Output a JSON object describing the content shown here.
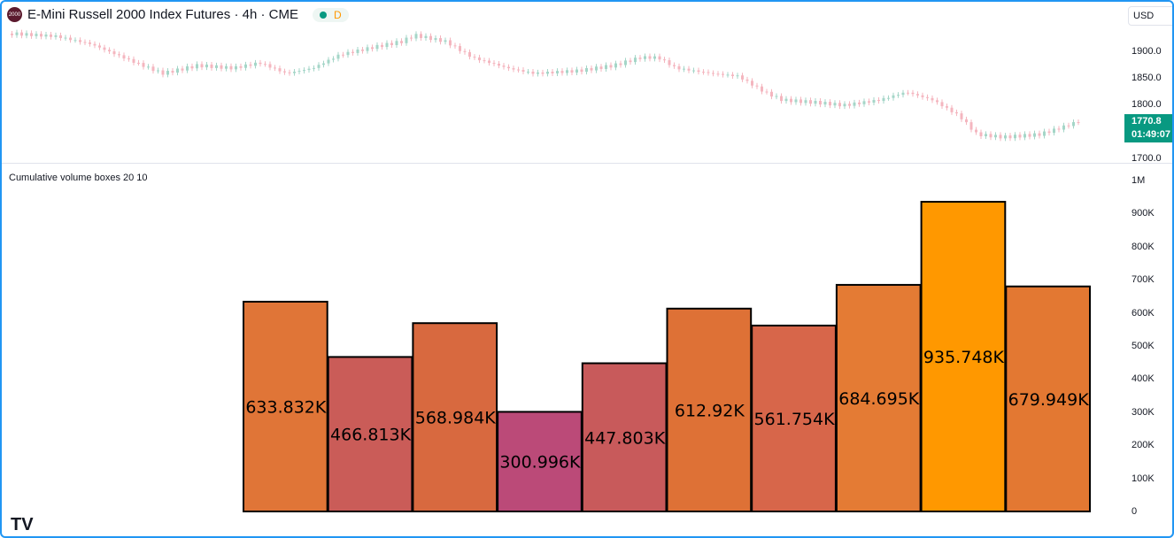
{
  "header": {
    "logo_text": "2000",
    "title": "E-Mini Russell 2000 Index Futures · 4h · CME",
    "status_letter": "D"
  },
  "currency": "USD",
  "price_axis": {
    "ticks": [
      "1900.0",
      "1850.0",
      "1800.0",
      "1700.0"
    ],
    "last_price": "1770.8",
    "countdown": "01:49:07"
  },
  "indicator": {
    "title": "Cumulative volume boxes 20 10"
  },
  "volume_axis": {
    "ticks": [
      "1M",
      "900K",
      "800K",
      "700K",
      "600K",
      "500K",
      "400K",
      "300K",
      "200K",
      "100K",
      "0"
    ]
  },
  "chart_data": [
    {
      "type": "line",
      "name": "price",
      "range": [
        1700,
        1950
      ],
      "points": [
        [
          10,
          1935
        ],
        [
          60,
          1930
        ],
        [
          100,
          1915
        ],
        [
          150,
          1880
        ],
        [
          180,
          1860
        ],
        [
          220,
          1875
        ],
        [
          260,
          1870
        ],
        [
          290,
          1880
        ],
        [
          320,
          1860
        ],
        [
          350,
          1870
        ],
        [
          380,
          1895
        ],
        [
          420,
          1910
        ],
        [
          450,
          1920
        ],
        [
          465,
          1932
        ],
        [
          500,
          1920
        ],
        [
          530,
          1890
        ],
        [
          570,
          1870
        ],
        [
          600,
          1860
        ],
        [
          650,
          1865
        ],
        [
          690,
          1875
        ],
        [
          720,
          1890
        ],
        [
          740,
          1890
        ],
        [
          760,
          1870
        ],
        [
          800,
          1860
        ],
        [
          830,
          1855
        ],
        [
          860,
          1825
        ],
        [
          880,
          1810
        ],
        [
          920,
          1805
        ],
        [
          950,
          1800
        ],
        [
          990,
          1810
        ],
        [
          1020,
          1825
        ],
        [
          1050,
          1810
        ],
        [
          1080,
          1780
        ],
        [
          1100,
          1745
        ],
        [
          1130,
          1740
        ],
        [
          1170,
          1745
        ],
        [
          1190,
          1755
        ],
        [
          1215,
          1770
        ]
      ]
    },
    {
      "type": "bar",
      "name": "Cumulative volume boxes",
      "ylim": [
        0,
        1000000
      ],
      "values": [
        633832,
        466813,
        568984,
        300996,
        447803,
        612920,
        561754,
        684695,
        935748,
        679949
      ],
      "labels": [
        "633.832K",
        "466.813K",
        "568.984K",
        "300.996K",
        "447.803K",
        "612.92K",
        "561.754K",
        "684.695K",
        "935.748K",
        "679.949K"
      ],
      "colors": [
        "#e07537",
        "#ca5c58",
        "#d8693f",
        "#bb4a78",
        "#c85a5b",
        "#de7136",
        "#d7664a",
        "#e47b34",
        "#ff9800",
        "#e37832"
      ]
    }
  ]
}
